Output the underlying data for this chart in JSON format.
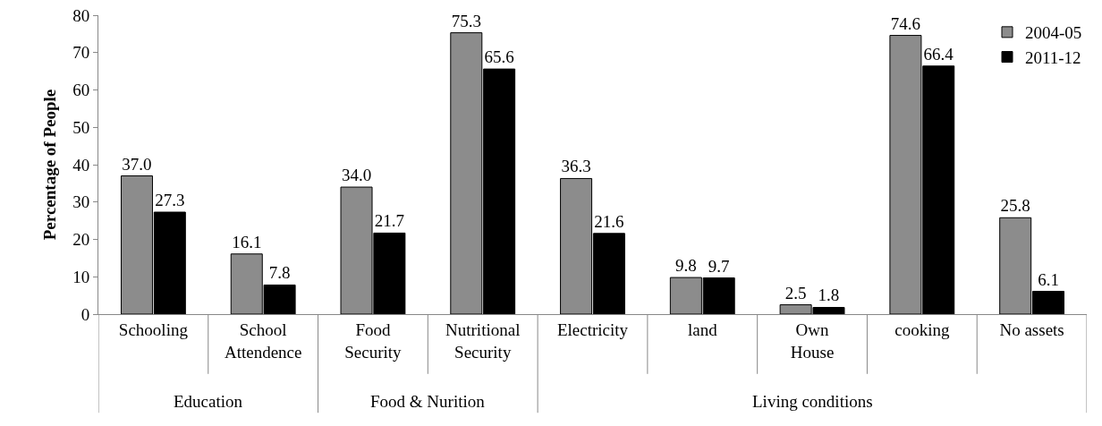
{
  "chart_data": {
    "type": "bar",
    "ylabel": "Percentage of People",
    "categories": [
      "Schooling",
      "School\nAttendence",
      "Food\nSecurity",
      "Nutritional\nSecurity",
      "Electricity",
      "land",
      "Own\nHouse",
      "cooking",
      "No assets"
    ],
    "series": [
      {
        "name": "2004-05",
        "color": "#8c8c8c",
        "values": [
          37.0,
          16.1,
          34.0,
          75.3,
          36.3,
          9.8,
          2.5,
          74.6,
          25.8
        ],
        "value_labels": [
          "37.0",
          "16.1",
          "34.0",
          "75.3",
          "36.3",
          "9.8",
          "2.5",
          "74.6",
          "25.8"
        ]
      },
      {
        "name": "2011-12",
        "color": "#000000",
        "values": [
          27.3,
          7.8,
          21.7,
          65.6,
          21.6,
          9.7,
          1.8,
          66.4,
          6.1
        ],
        "value_labels": [
          "27.3",
          "7.8",
          "21.7",
          "65.6",
          "21.6",
          "9.7",
          "1.8",
          "66.4",
          "6.1"
        ]
      }
    ],
    "ylim": [
      0,
      80
    ],
    "yticks": [
      0,
      10,
      20,
      30,
      40,
      50,
      60,
      70,
      80
    ],
    "grid": false,
    "legend": "top right",
    "annotations": [
      "Education",
      "Food & Nurition",
      "Living conditions"
    ]
  }
}
